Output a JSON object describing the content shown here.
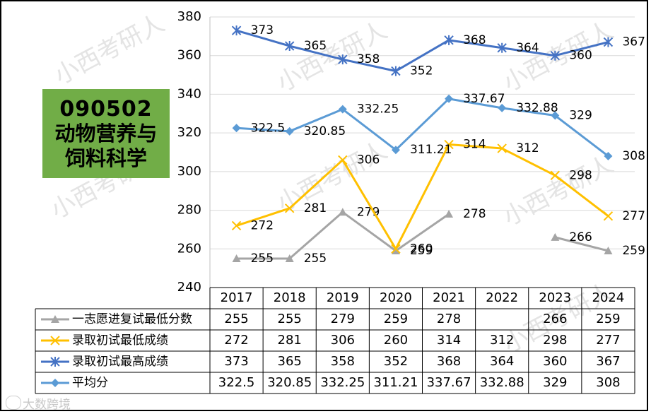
{
  "label_box": {
    "code": "090502",
    "lines": [
      "动物营养与",
      "饲料科学"
    ]
  },
  "watermark": "小西考研人",
  "footer_watermark": "大数跨境",
  "colors": {
    "series_min_first": "#a5a5a5",
    "series_min_admit": "#ffc000",
    "series_max_admit": "#4472c4",
    "series_avg": "#5b9bd5",
    "label_box_bg": "#71ad47"
  },
  "chart_data": {
    "type": "line",
    "categories": [
      "2017",
      "2018",
      "2019",
      "2020",
      "2021",
      "2022",
      "2023",
      "2024"
    ],
    "ylim": [
      240,
      380
    ],
    "yticks": [
      240,
      260,
      280,
      300,
      320,
      340,
      360,
      380
    ],
    "grid": true,
    "legend": "data-table",
    "series": [
      {
        "name": "一志愿进复试最低分数",
        "marker": "triangle",
        "color": "#a5a5a5",
        "values": [
          255,
          255,
          279,
          259,
          278,
          null,
          266,
          259
        ],
        "labels": [
          "255",
          "255",
          "279",
          "259",
          "278",
          "",
          "266",
          "259"
        ]
      },
      {
        "name": "录取初试最低成绩",
        "marker": "x",
        "color": "#ffc000",
        "values": [
          272,
          281,
          306,
          260,
          314,
          312,
          298,
          277
        ],
        "labels": [
          "272",
          "281",
          "306",
          "260",
          "314",
          "312",
          "298",
          "277"
        ]
      },
      {
        "name": "录取初试最高成绩",
        "marker": "star",
        "color": "#4472c4",
        "values": [
          373,
          365,
          358,
          352,
          368,
          364,
          360,
          367
        ],
        "labels": [
          "373",
          "365",
          "358",
          "352",
          "368",
          "364",
          "360",
          "367"
        ]
      },
      {
        "name": "平均分",
        "marker": "diamond",
        "color": "#5b9bd5",
        "values": [
          322.5,
          320.85,
          332.25,
          311.21,
          337.67,
          332.88,
          329,
          308
        ],
        "labels": [
          "322.5",
          "320.85",
          "332.25",
          "311.21",
          "337.67",
          "332.88",
          "329",
          "308"
        ]
      }
    ]
  }
}
